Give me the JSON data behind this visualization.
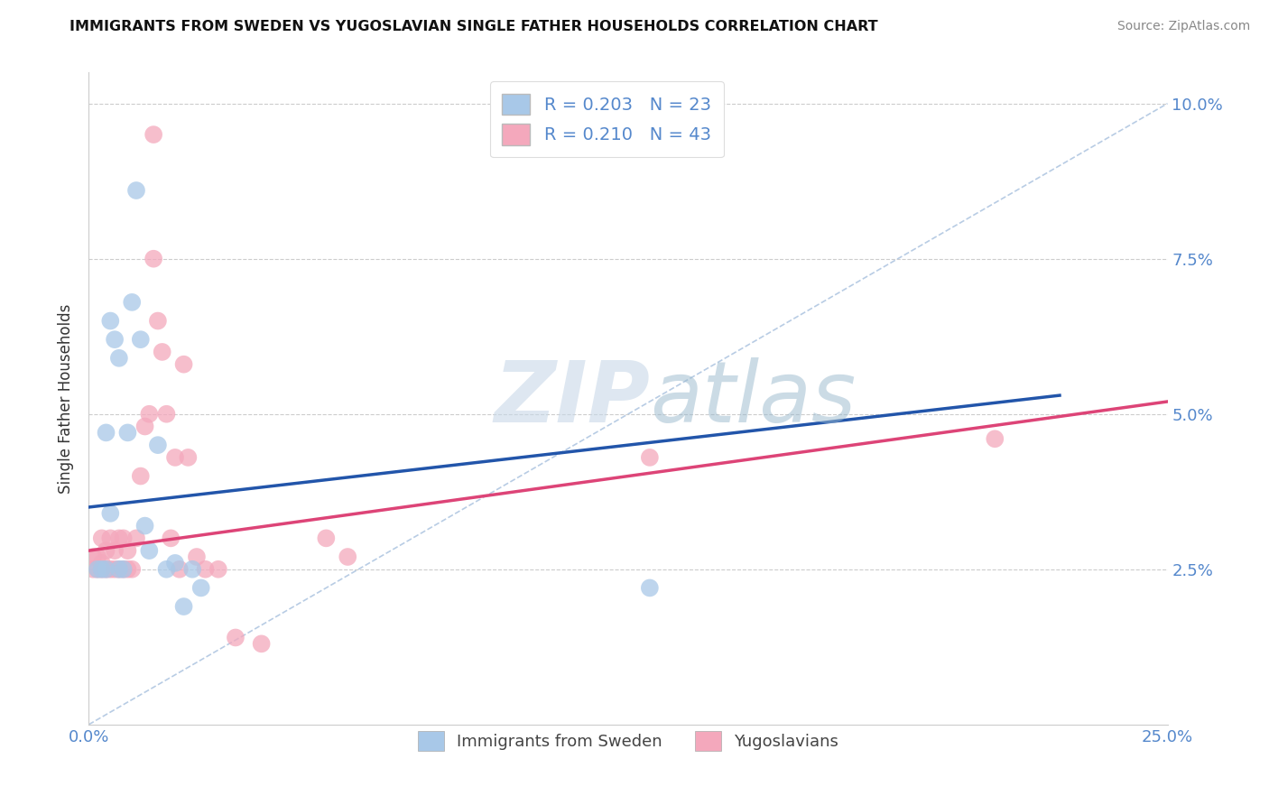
{
  "title": "IMMIGRANTS FROM SWEDEN VS YUGOSLAVIAN SINGLE FATHER HOUSEHOLDS CORRELATION CHART",
  "source": "Source: ZipAtlas.com",
  "ylabel": "Single Father Households",
  "xlim": [
    0.0,
    0.25
  ],
  "ylim": [
    0.0,
    0.105
  ],
  "yticks": [
    0.025,
    0.05,
    0.075,
    0.1
  ],
  "ytick_labels": [
    "2.5%",
    "5.0%",
    "7.5%",
    "10.0%"
  ],
  "xticks": [
    0.0,
    0.05,
    0.1,
    0.15,
    0.2,
    0.25
  ],
  "xtick_labels": [
    "0.0%",
    "",
    "",
    "",
    "",
    "25.0%"
  ],
  "color_blue": "#a8c8e8",
  "color_pink": "#f4a8bc",
  "line_blue": "#2255aa",
  "line_pink": "#dd4477",
  "line_dash_color": "#b8cce4",
  "blue_line_x": [
    0.0,
    0.225
  ],
  "blue_line_y": [
    0.035,
    0.053
  ],
  "pink_line_x": [
    0.0,
    0.25
  ],
  "pink_line_y": [
    0.028,
    0.052
  ],
  "diag_line_x": [
    0.0,
    0.25
  ],
  "diag_line_y": [
    0.0,
    0.1
  ],
  "sweden_x": [
    0.002,
    0.003,
    0.004,
    0.004,
    0.005,
    0.005,
    0.006,
    0.007,
    0.007,
    0.008,
    0.009,
    0.01,
    0.011,
    0.012,
    0.013,
    0.014,
    0.016,
    0.018,
    0.02,
    0.022,
    0.024,
    0.026,
    0.13
  ],
  "sweden_y": [
    0.025,
    0.025,
    0.025,
    0.047,
    0.065,
    0.034,
    0.062,
    0.059,
    0.025,
    0.025,
    0.047,
    0.068,
    0.086,
    0.062,
    0.032,
    0.028,
    0.045,
    0.025,
    0.026,
    0.019,
    0.025,
    0.022,
    0.022
  ],
  "yugoslav_x": [
    0.001,
    0.001,
    0.002,
    0.002,
    0.003,
    0.003,
    0.003,
    0.004,
    0.004,
    0.005,
    0.005,
    0.006,
    0.006,
    0.007,
    0.007,
    0.008,
    0.008,
    0.009,
    0.009,
    0.01,
    0.011,
    0.012,
    0.013,
    0.014,
    0.015,
    0.016,
    0.017,
    0.018,
    0.019,
    0.02,
    0.021,
    0.022,
    0.023,
    0.025,
    0.027,
    0.03,
    0.034,
    0.04,
    0.055,
    0.06,
    0.13,
    0.21,
    0.015
  ],
  "yugoslav_y": [
    0.025,
    0.027,
    0.025,
    0.027,
    0.025,
    0.026,
    0.03,
    0.025,
    0.028,
    0.025,
    0.03,
    0.025,
    0.028,
    0.025,
    0.03,
    0.025,
    0.03,
    0.025,
    0.028,
    0.025,
    0.03,
    0.04,
    0.048,
    0.05,
    0.095,
    0.065,
    0.06,
    0.05,
    0.03,
    0.043,
    0.025,
    0.058,
    0.043,
    0.027,
    0.025,
    0.025,
    0.014,
    0.013,
    0.03,
    0.027,
    0.043,
    0.046,
    0.075
  ],
  "watermark_zip": "ZIP",
  "watermark_atlas": "atlas",
  "background_color": "#ffffff",
  "grid_color": "#cccccc",
  "tick_color": "#5588cc",
  "legend_r1": "R = 0.203",
  "legend_n1": "N = 23",
  "legend_r2": "R = 0.210",
  "legend_n2": "N = 43",
  "label_sweden": "Immigrants from Sweden",
  "label_yugoslav": "Yugoslavians"
}
